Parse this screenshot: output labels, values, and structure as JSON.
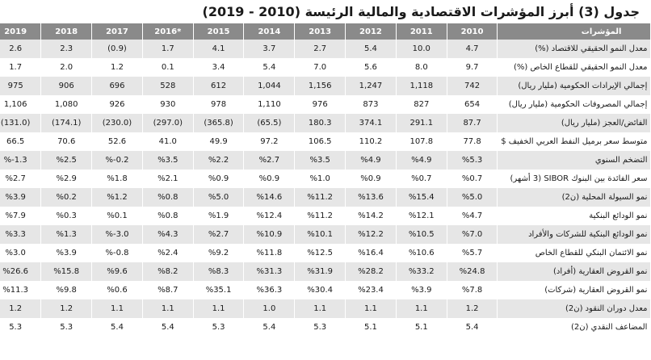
{
  "title": "جدول (3) أبرز المؤشرات الاقتصادية والمالية الرئيسة (2010 - 2019)",
  "table": {
    "headers": [
      "المؤشرات",
      "2010",
      "2011",
      "2012",
      "2013",
      "2014",
      "2015",
      "*2016",
      "2017",
      "2018",
      "2019"
    ],
    "rows": [
      {
        "label": "معدل النمو الحقيقي للاقتصاد (%)",
        "values": [
          "4.7",
          "10.0",
          "5.4",
          "2.7",
          "3.7",
          "4.1",
          "1.7",
          "(0.9)",
          "2.3",
          "2.6"
        ]
      },
      {
        "label": "معدل النمو الحقيقي للقطاع الخاص (%)",
        "values": [
          "9.7",
          "8.0",
          "5.6",
          "7.0",
          "5.4",
          "3.4",
          "0.1",
          "1.2",
          "2.0",
          "1.7"
        ]
      },
      {
        "label": "إجمالي الإيرادات الحكومية (مليار ريال)",
        "values": [
          "742",
          "1,118",
          "1,247",
          "1,156",
          "1,044",
          "612",
          "528",
          "696",
          "906",
          "975"
        ]
      },
      {
        "label": "إجمالي المصروفات الحكومية (مليار ريال)",
        "values": [
          "654",
          "827",
          "873",
          "976",
          "1,110",
          "978",
          "930",
          "926",
          "1,080",
          "1,106"
        ]
      },
      {
        "label": "الفائض/العجز (مليار ريال)",
        "values": [
          "87.7",
          "291.1",
          "374.1",
          "180.3",
          "(65.5)",
          "(365.8)",
          "(297.0)",
          "(230.0)",
          "(174.1)",
          "(131.0)"
        ]
      },
      {
        "label": "متوسط سعر برميل النفط العربي الخفيف $",
        "values": [
          "77.8",
          "107.8",
          "110.2",
          "106.5",
          "97.2",
          "49.9",
          "41.0",
          "52.6",
          "70.6",
          "66.5"
        ]
      },
      {
        "label": "التضخم السنوي",
        "values": [
          "%5.3",
          "%4.9",
          "%4.9",
          "%3.5",
          "%2.7",
          "%2.2",
          "%3.5",
          "%-0.2",
          "%2.5",
          "%-1.3"
        ]
      },
      {
        "label": "سعر الفائدة بين البنوك SIBOR (3 أشهر)",
        "values": [
          "%0.7",
          "%0.7",
          "%0.9",
          "%1.0",
          "%0.9",
          "%0.9",
          "%2.1",
          "%1.8",
          "%2.9",
          "%2.7"
        ]
      },
      {
        "label": "نمو السيولة المحلية (ن2)",
        "values": [
          "%5.0",
          "%15.4",
          "%13.6",
          "%11.2",
          "%14.6",
          "%5.0",
          "%0.8",
          "%1.2",
          "%0.2",
          "%3.9"
        ]
      },
      {
        "label": "نمو الودائع البنكية",
        "values": [
          "%4.7",
          "%12.1",
          "%14.2",
          "%11.2",
          "%12.4",
          "%1.9",
          "%0.8",
          "%0.1",
          "%0.3",
          "%7.9"
        ]
      },
      {
        "label": "نمو الودائع البنكية للشركات والأفراد",
        "values": [
          "%7.0",
          "%10.5",
          "%12.2",
          "%10.1",
          "%10.9",
          "%2.7",
          "%4.3",
          "%-3.0",
          "%1.3",
          "%3.3"
        ]
      },
      {
        "label": "نمو الائتمان البنكي للقطاع الخاص",
        "values": [
          "%5.7",
          "%10.6",
          "%16.4",
          "%12.5",
          "%11.8",
          "%9.2",
          "%2.4",
          "%-0.8",
          "%3.9",
          "%3.0"
        ]
      },
      {
        "label": "نمو القروض العقارية (أفراد)",
        "values": [
          "%24.8",
          "%33.2",
          "%28.2",
          "%31.9",
          "%31.3",
          "%8.3",
          "%8.2",
          "%9.6",
          "%15.8",
          "%26.6"
        ]
      },
      {
        "label": "نمو القروض العقارية (شركات)",
        "values": [
          "%7.8",
          "%3.9",
          "%23.4",
          "%30.4",
          "%36.3",
          "%35.1",
          "%8.7",
          "%0.6",
          "%9.8",
          "%11.3"
        ]
      },
      {
        "label": "معدل دوران النقود (ن2)",
        "values": [
          "1.2",
          "1.1",
          "1.1",
          "1.1",
          "1.0",
          "1.1",
          "1.1",
          "1.1",
          "1.2",
          "1.2"
        ]
      },
      {
        "label": "المضاعف النقدي (ن2)",
        "values": [
          "5.4",
          "5.1",
          "5.1",
          "5.3",
          "5.4",
          "5.3",
          "5.4",
          "5.4",
          "5.3",
          "5.3"
        ]
      }
    ]
  }
}
